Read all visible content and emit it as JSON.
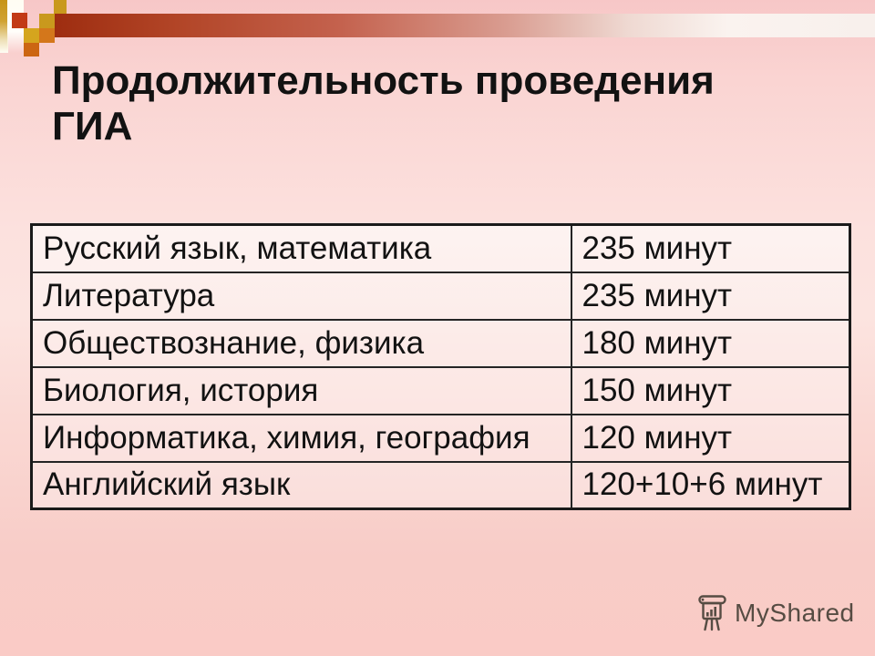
{
  "slide": {
    "title": "Продолжительность проведения ГИА"
  },
  "table": {
    "rows": [
      {
        "subject": "Русский язык, математика",
        "duration": "235 минут"
      },
      {
        "subject": "Литература",
        "duration": "235 минут"
      },
      {
        "subject": "Обществознание, физика",
        "duration": "180 минут"
      },
      {
        "subject": "Биология, история",
        "duration": "150 минут"
      },
      {
        "subject": "Информатика, химия, география",
        "duration": "120 минут"
      },
      {
        "subject": "Английский язык",
        "duration": "120+10+6 минут"
      }
    ]
  },
  "watermark": {
    "label": "MyShared",
    "icon": "flipchart-chart-icon"
  },
  "colors": {
    "accent-gold": "#c9991d",
    "accent-gold-bright": "#d5a51e",
    "accent-red": "#c23a16",
    "accent-orange": "#d4771b",
    "accent-orange-dark": "#cc6612",
    "bar-dark": "#9e2d10",
    "table-border": "#1a1a1a",
    "text": "#121212",
    "watermark-text": "#564c43"
  }
}
